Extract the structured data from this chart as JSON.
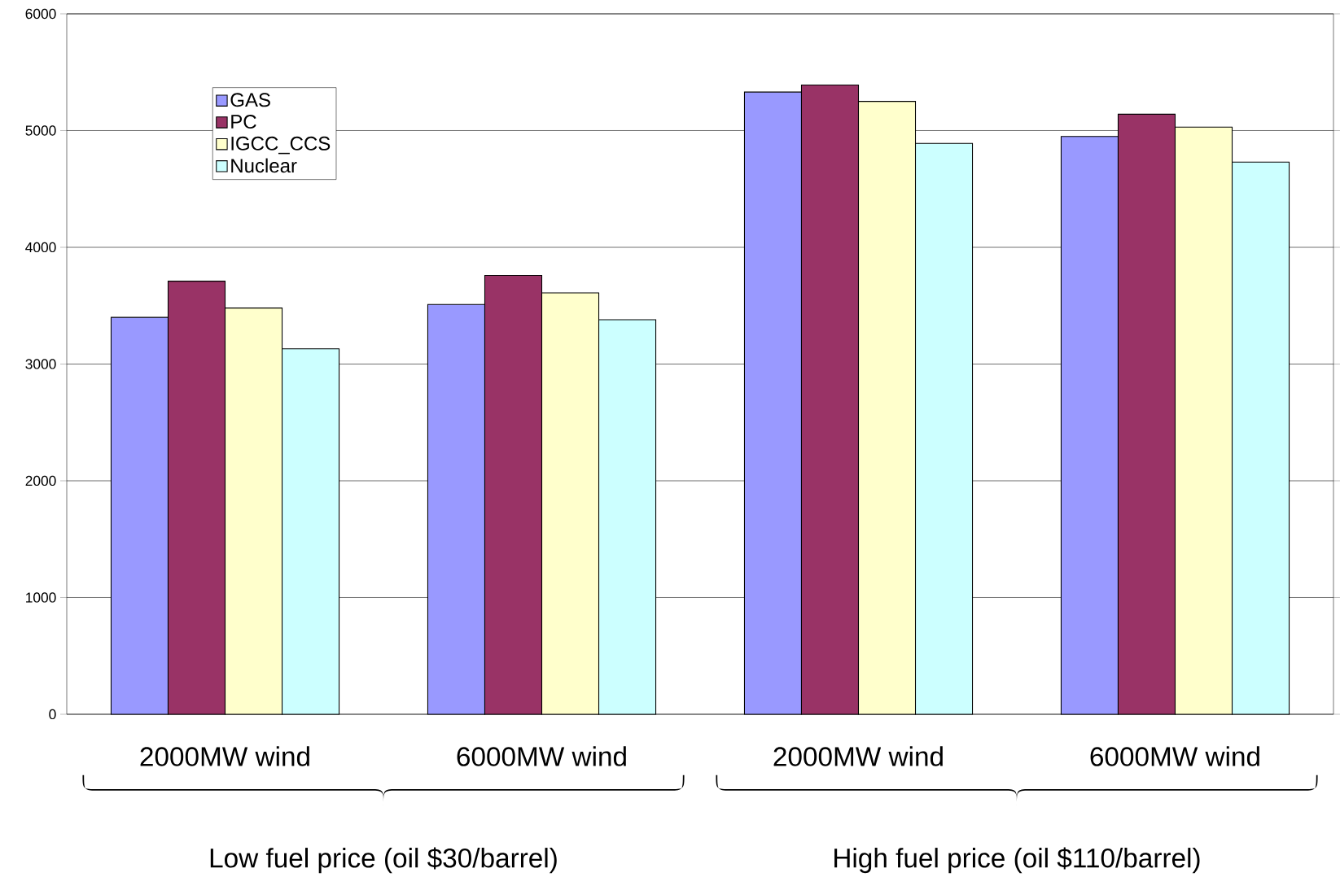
{
  "chart_data": {
    "type": "bar",
    "categories": [
      "2000MW wind",
      "6000MW wind",
      "2000MW wind",
      "6000MW wind"
    ],
    "series": [
      {
        "name": "GAS",
        "color": "#9999ff",
        "values": [
          3400,
          3510,
          5330,
          4950
        ]
      },
      {
        "name": "PC",
        "color": "#993366",
        "values": [
          3710,
          3760,
          5390,
          5140
        ]
      },
      {
        "name": "IGCC_CCS",
        "color": "#ffffcc",
        "values": [
          3480,
          3610,
          5250,
          5030
        ]
      },
      {
        "name": "Nuclear",
        "color": "#ccffff",
        "values": [
          3130,
          3380,
          4890,
          4730
        ]
      }
    ],
    "ylim": [
      0,
      6000
    ],
    "yticks": [
      0,
      1000,
      2000,
      3000,
      4000,
      5000,
      6000
    ],
    "grid": "y",
    "legend": "top left",
    "annotations": [
      "Low fuel price (oil $30/barrel)",
      "High fuel price (oil $110/barrel)"
    ]
  }
}
